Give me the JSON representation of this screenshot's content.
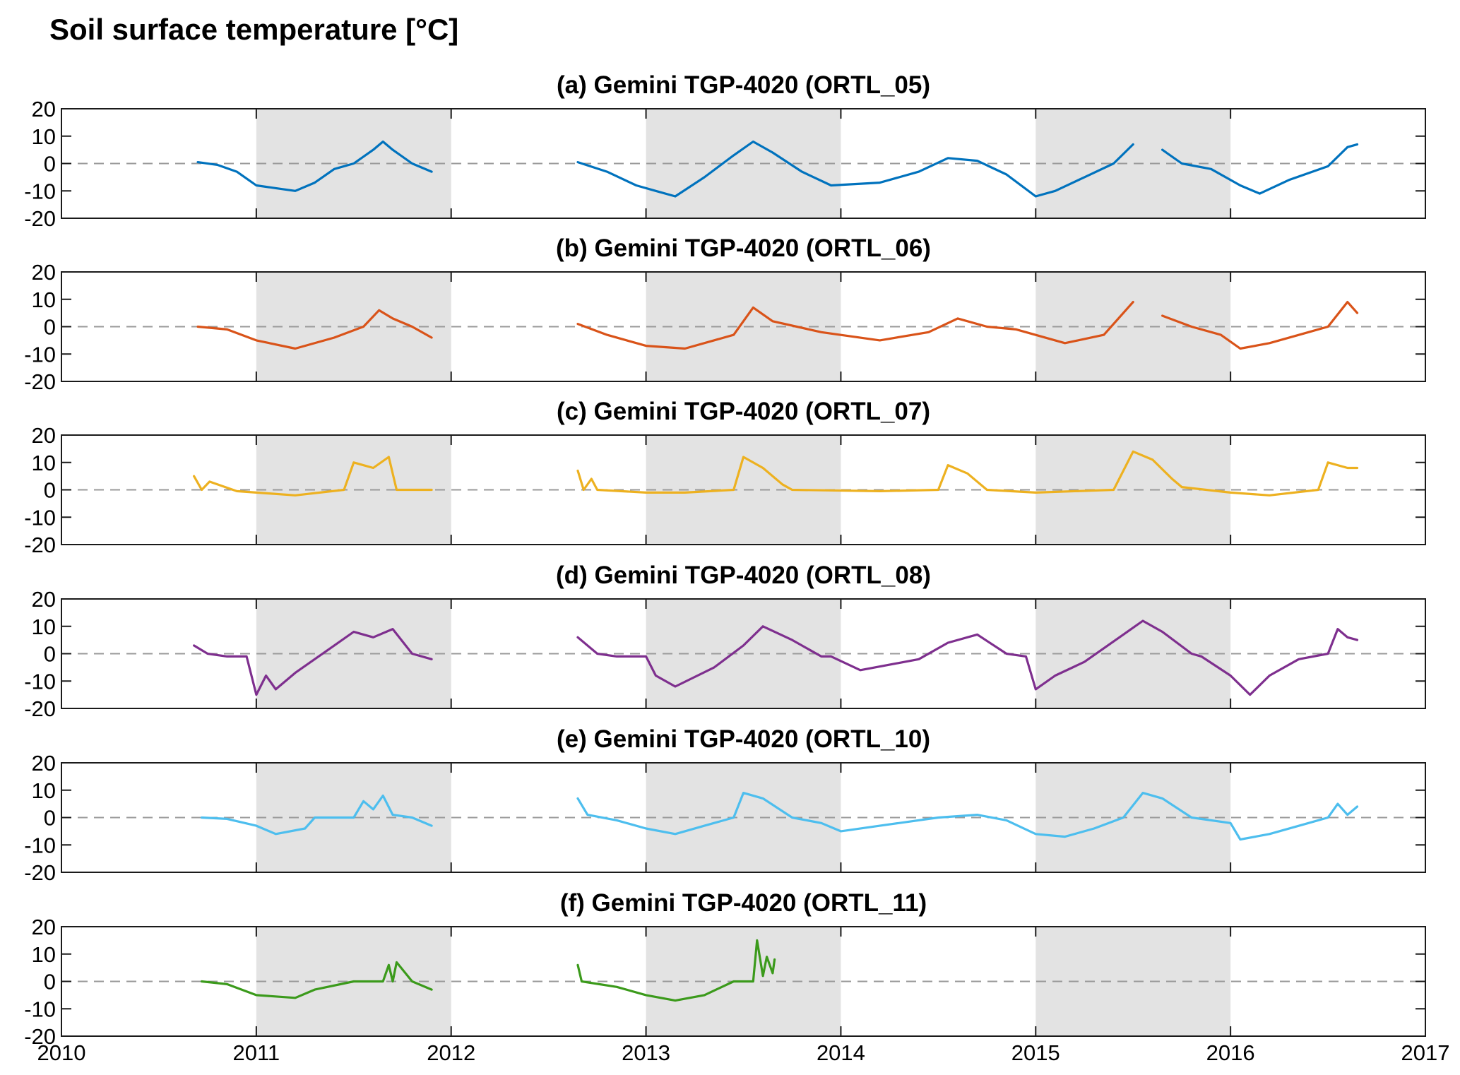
{
  "title": "Soil surface temperature [°C]",
  "chart_data": [
    {
      "type": "line",
      "title": "(a) Gemini TGP-4020 (ORTL_05)",
      "color": "#0072BD",
      "ylim": [
        -20,
        20
      ],
      "xlim": [
        2010,
        2017
      ],
      "yticks": [
        20,
        10,
        0,
        -10,
        -20
      ],
      "shaded_years": [
        [
          2011,
          2012
        ],
        [
          2013,
          2014
        ],
        [
          2015,
          2016
        ]
      ],
      "zero_line": true,
      "segments": [
        {
          "x": [
            2010.7,
            2010.8,
            2010.9,
            2011.0,
            2011.1,
            2011.2,
            2011.3,
            2011.4,
            2011.5,
            2011.6,
            2011.65,
            2011.7,
            2011.8,
            2011.9
          ],
          "y": [
            0.5,
            -0.5,
            -3,
            -8,
            -9,
            -10,
            -7,
            -2,
            0,
            5,
            8,
            5,
            0,
            -3
          ]
        },
        {
          "x": [
            2012.65,
            2012.8,
            2012.95,
            2013.05,
            2013.15,
            2013.3,
            2013.45,
            2013.55,
            2013.65,
            2013.8,
            2013.95,
            2014.2,
            2014.4,
            2014.55,
            2014.7,
            2014.85,
            2015.0,
            2015.1,
            2015.25,
            2015.4,
            2015.5
          ],
          "y": [
            0.5,
            -3,
            -8,
            -10,
            -12,
            -5,
            3,
            8,
            4,
            -3,
            -8,
            -7,
            -3,
            2,
            1,
            -4,
            -12,
            -10,
            -5,
            0,
            7
          ]
        },
        {
          "x": [
            2015.65,
            2015.75,
            2015.9,
            2016.05,
            2016.15,
            2016.3,
            2016.5,
            2016.6,
            2016.65
          ],
          "y": [
            5,
            0,
            -2,
            -8,
            -11,
            -6,
            -1,
            6,
            7
          ]
        }
      ]
    },
    {
      "type": "line",
      "title": "(b) Gemini TGP-4020 (ORTL_06)",
      "color": "#D95319",
      "ylim": [
        -20,
        20
      ],
      "xlim": [
        2010,
        2017
      ],
      "yticks": [
        20,
        10,
        0,
        -10,
        -20
      ],
      "shaded_years": [
        [
          2011,
          2012
        ],
        [
          2013,
          2014
        ],
        [
          2015,
          2016
        ]
      ],
      "zero_line": true,
      "segments": [
        {
          "x": [
            2010.7,
            2010.85,
            2011.0,
            2011.2,
            2011.4,
            2011.55,
            2011.63,
            2011.7,
            2011.8,
            2011.9
          ],
          "y": [
            0,
            -1,
            -5,
            -8,
            -4,
            0,
            6,
            3,
            0,
            -4
          ]
        },
        {
          "x": [
            2012.65,
            2012.8,
            2013.0,
            2013.2,
            2013.45,
            2013.55,
            2013.65,
            2013.9,
            2014.2,
            2014.45,
            2014.6,
            2014.75,
            2014.9,
            2015.15,
            2015.35,
            2015.5
          ],
          "y": [
            1,
            -3,
            -7,
            -8,
            -3,
            7,
            2,
            -2,
            -5,
            -2,
            3,
            0,
            -1,
            -6,
            -3,
            9
          ]
        },
        {
          "x": [
            2015.65,
            2015.8,
            2015.95,
            2016.05,
            2016.2,
            2016.4,
            2016.5,
            2016.6,
            2016.65
          ],
          "y": [
            4,
            0,
            -3,
            -8,
            -6,
            -2,
            0,
            9,
            5
          ]
        }
      ]
    },
    {
      "type": "line",
      "title": "(c) Gemini TGP-4020 (ORTL_07)",
      "color": "#EDB120",
      "ylim": [
        -20,
        20
      ],
      "xlim": [
        2010,
        2017
      ],
      "yticks": [
        20,
        10,
        0,
        -10,
        -20
      ],
      "shaded_years": [
        [
          2011,
          2012
        ],
        [
          2013,
          2014
        ],
        [
          2015,
          2016
        ]
      ],
      "zero_line": true,
      "segments": [
        {
          "x": [
            2010.68,
            2010.72,
            2010.76,
            2010.9,
            2011.2,
            2011.45,
            2011.5,
            2011.6,
            2011.68,
            2011.72,
            2011.9
          ],
          "y": [
            5,
            0,
            3,
            -0.5,
            -2,
            0,
            10,
            8,
            12,
            0,
            0
          ]
        },
        {
          "x": [
            2012.65,
            2012.68,
            2012.72,
            2012.75,
            2013.0,
            2013.2,
            2013.45,
            2013.5,
            2013.6,
            2013.7,
            2013.75,
            2014.2,
            2014.5,
            2014.55,
            2014.65,
            2014.75,
            2015.0,
            2015.4,
            2015.5,
            2015.6,
            2015.7,
            2015.75
          ],
          "y": [
            7,
            0,
            4,
            0,
            -1,
            -1,
            0,
            12,
            8,
            2,
            0,
            -0.5,
            0,
            9,
            6,
            0,
            -1,
            0,
            14,
            11,
            4,
            1
          ]
        },
        {
          "x": [
            2015.75,
            2016.0,
            2016.2,
            2016.45,
            2016.5,
            2016.6,
            2016.65
          ],
          "y": [
            1,
            -1,
            -2,
            0,
            10,
            8,
            8
          ]
        }
      ]
    },
    {
      "type": "line",
      "title": "(d) Gemini TGP-4020 (ORTL_08)",
      "color": "#7E2F8E",
      "ylim": [
        -20,
        20
      ],
      "xlim": [
        2010,
        2017
      ],
      "yticks": [
        20,
        10,
        0,
        -10,
        -20
      ],
      "shaded_years": [
        [
          2011,
          2012
        ],
        [
          2013,
          2014
        ],
        [
          2015,
          2016
        ]
      ],
      "zero_line": true,
      "segments": [
        {
          "x": [
            2010.68,
            2010.75,
            2010.85,
            2010.95,
            2011.0,
            2011.05,
            2011.1,
            2011.2,
            2011.4,
            2011.5,
            2011.6,
            2011.7,
            2011.8,
            2011.9
          ],
          "y": [
            3,
            0,
            -1,
            -1,
            -15,
            -8,
            -13,
            -7,
            3,
            8,
            6,
            9,
            0,
            -2
          ]
        },
        {
          "x": [
            2012.65,
            2012.75,
            2012.85,
            2013.0,
            2013.05,
            2013.15,
            2013.35,
            2013.5,
            2013.6,
            2013.75,
            2013.9,
            2013.95,
            2014.1,
            2014.4,
            2014.55,
            2014.7,
            2014.85,
            2014.95,
            2015.0,
            2015.1,
            2015.25,
            2015.45,
            2015.55,
            2015.65,
            2015.8,
            2015.85
          ],
          "y": [
            6,
            0,
            -1,
            -1,
            -8,
            -12,
            -5,
            3,
            10,
            5,
            -1,
            -1,
            -6,
            -2,
            4,
            7,
            0,
            -1,
            -13,
            -8,
            -3,
            7,
            12,
            8,
            0,
            -1
          ]
        },
        {
          "x": [
            2015.85,
            2016.0,
            2016.1,
            2016.2,
            2016.35,
            2016.5,
            2016.55,
            2016.6,
            2016.65
          ],
          "y": [
            -1,
            -8,
            -15,
            -8,
            -2,
            0,
            9,
            6,
            5
          ]
        }
      ]
    },
    {
      "type": "line",
      "title": "(e) Gemini TGP-4020 (ORTL_10)",
      "color": "#4DBEEE",
      "ylim": [
        -20,
        20
      ],
      "xlim": [
        2010,
        2017
      ],
      "yticks": [
        20,
        10,
        0,
        -10,
        -20
      ],
      "shaded_years": [
        [
          2011,
          2012
        ],
        [
          2013,
          2014
        ],
        [
          2015,
          2016
        ]
      ],
      "zero_line": true,
      "segments": [
        {
          "x": [
            2010.72,
            2010.85,
            2011.0,
            2011.1,
            2011.25,
            2011.3,
            2011.5,
            2011.55,
            2011.6,
            2011.65,
            2011.7,
            2011.8,
            2011.9
          ],
          "y": [
            0,
            -0.5,
            -3,
            -6,
            -4,
            0,
            0,
            6,
            3,
            8,
            1,
            0,
            -3
          ]
        },
        {
          "x": [
            2012.65,
            2012.7,
            2012.85,
            2013.0,
            2013.15,
            2013.3,
            2013.45,
            2013.5,
            2013.6,
            2013.75,
            2013.9,
            2014.0,
            2014.2,
            2014.5,
            2014.7,
            2014.85,
            2015.0,
            2015.15,
            2015.3,
            2015.45,
            2015.55,
            2015.65,
            2015.8
          ],
          "y": [
            7,
            1,
            -1,
            -4,
            -6,
            -3,
            0,
            9,
            7,
            0,
            -2,
            -5,
            -3,
            0,
            1,
            -1,
            -6,
            -7,
            -4,
            0,
            9,
            7,
            0
          ]
        },
        {
          "x": [
            2015.8,
            2016.0,
            2016.05,
            2016.2,
            2016.4,
            2016.5,
            2016.55,
            2016.6,
            2016.65
          ],
          "y": [
            0,
            -2,
            -8,
            -6,
            -2,
            0,
            5,
            1,
            4
          ]
        }
      ]
    },
    {
      "type": "line",
      "title": "(f) Gemini TGP-4020 (ORTL_11)",
      "color": "#3B9A1B",
      "ylim": [
        -20,
        20
      ],
      "xlim": [
        2010,
        2017
      ],
      "yticks": [
        20,
        10,
        0,
        -10,
        -20
      ],
      "xticks": [
        "2010",
        "2011",
        "2012",
        "2013",
        "2014",
        "2015",
        "2016",
        "2017"
      ],
      "shaded_years": [
        [
          2011,
          2012
        ],
        [
          2013,
          2014
        ],
        [
          2015,
          2016
        ]
      ],
      "zero_line": true,
      "segments": [
        {
          "x": [
            2010.72,
            2010.85,
            2011.0,
            2011.2,
            2011.3,
            2011.5,
            2011.65,
            2011.68,
            2011.7,
            2011.72,
            2011.8,
            2011.9
          ],
          "y": [
            0,
            -1,
            -5,
            -6,
            -3,
            0,
            0,
            6,
            0,
            7,
            0,
            -3
          ]
        },
        {
          "x": [
            2012.65,
            2012.67,
            2012.85,
            2013.0,
            2013.15,
            2013.3,
            2013.45,
            2013.5,
            2013.55,
            2013.57,
            2013.6,
            2013.62,
            2013.65,
            2013.66
          ],
          "y": [
            6,
            0,
            -2,
            -5,
            -7,
            -5,
            0,
            0,
            0,
            15,
            2,
            9,
            3,
            8
          ]
        }
      ]
    }
  ]
}
